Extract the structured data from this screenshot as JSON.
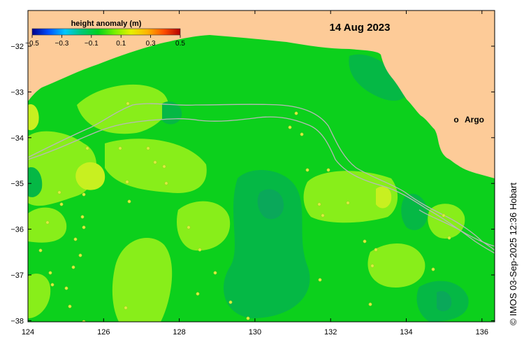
{
  "map": {
    "date": "14 Aug 2023",
    "credit": "© IMOS 03-Sep-2025 12:36 Hobart",
    "x_ticks": [
      "124",
      "126",
      "128",
      "130",
      "132",
      "134",
      "136"
    ],
    "y_ticks": [
      "−32",
      "−33",
      "−34",
      "−35",
      "−36",
      "−37",
      "−38"
    ],
    "colorbar": {
      "title": "height anomaly (m)",
      "labels": [
        "−0.5",
        "−0.3",
        "−0.1",
        "0.1",
        "0.3",
        "0.5"
      ],
      "colors": [
        "#00008b",
        "#0050ff",
        "#00c8ff",
        "#00c878",
        "#00d21e",
        "#78f000",
        "#e6f000",
        "#ffb400",
        "#ff5000",
        "#b40000"
      ]
    },
    "argo": {
      "marker": "o",
      "label": "Argo",
      "color": "#ff00ff"
    },
    "colors": {
      "land": "#fdcb98",
      "sea_base": "#0cd01c",
      "anomaly_high": "#88ee1a",
      "anomaly_peak": "#c8f020",
      "anomaly_low": "#05b845",
      "anomaly_lowest": "#0aa85a",
      "track": "#b8b8b8"
    }
  }
}
